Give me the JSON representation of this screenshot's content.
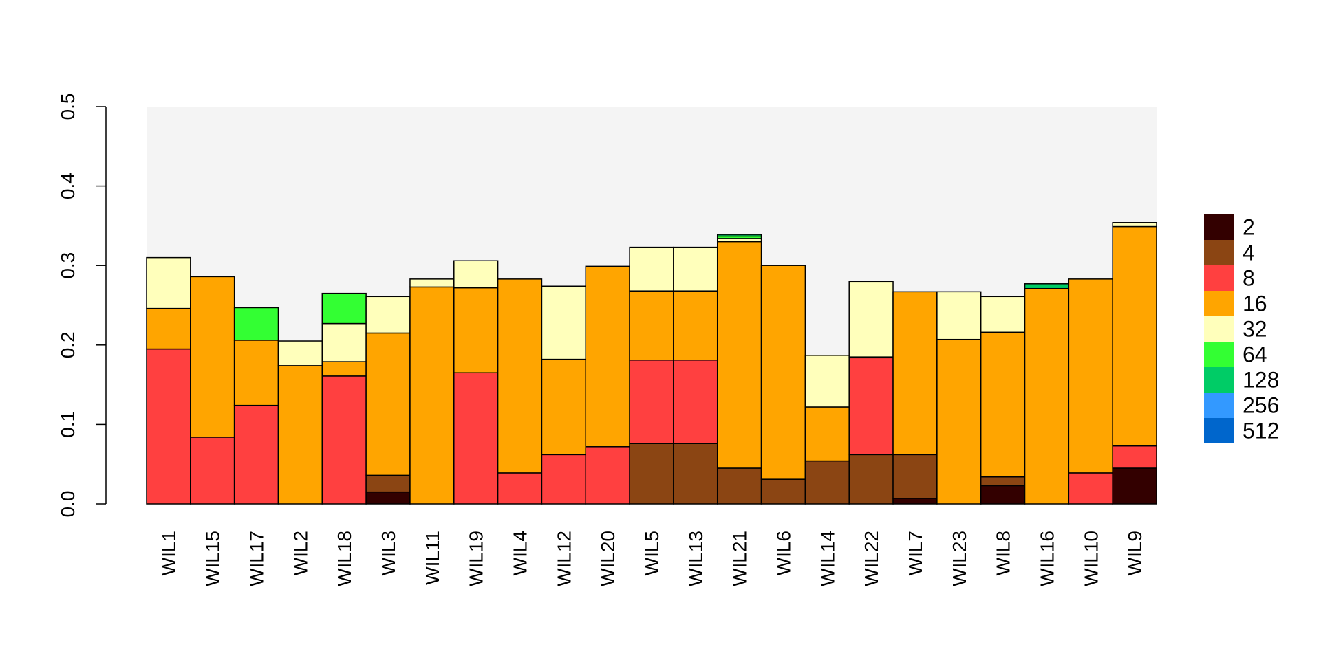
{
  "chart_data": {
    "type": "bar",
    "stacked": true,
    "title": "",
    "xlabel": "",
    "ylabel": "",
    "ylim": [
      0,
      0.5
    ],
    "yticks": [
      "0.0",
      "0.1",
      "0.2",
      "0.3",
      "0.4",
      "0.5"
    ],
    "plot_background": "#f4f4f4",
    "legend_position": "right",
    "categories": [
      "WIL1",
      "WIL15",
      "WIL17",
      "WIL2",
      "WIL18",
      "WIL3",
      "WIL11",
      "WIL19",
      "WIL4",
      "WIL12",
      "WIL20",
      "WIL5",
      "WIL13",
      "WIL21",
      "WIL6",
      "WIL14",
      "WIL22",
      "WIL7",
      "WIL23",
      "WIL8",
      "WIL16",
      "WIL10",
      "WIL9"
    ],
    "series": [
      {
        "name": "2",
        "color": "#330000",
        "values": [
          0,
          0,
          0,
          0,
          0,
          0.015,
          0,
          0,
          0,
          0,
          0,
          0,
          0,
          0,
          0,
          0,
          0,
          0.007,
          0,
          0.023,
          0,
          0,
          0.045
        ]
      },
      {
        "name": "4",
        "color": "#8b4513",
        "values": [
          0,
          0,
          0,
          0,
          0,
          0.021,
          0,
          0,
          0,
          0,
          0,
          0.076,
          0.076,
          0.045,
          0.031,
          0.054,
          0.062,
          0.055,
          0,
          0.011,
          0,
          0,
          0
        ]
      },
      {
        "name": "8",
        "color": "#ff4040",
        "values": [
          0.195,
          0.084,
          0.124,
          0,
          0.161,
          0,
          0,
          0.165,
          0.039,
          0.062,
          0.072,
          0.105,
          0.105,
          0,
          0,
          0,
          0.122,
          0,
          0,
          0,
          0,
          0.039,
          0.028
        ]
      },
      {
        "name": "16",
        "color": "#ffa500",
        "values": [
          0.051,
          0.202,
          0.082,
          0.174,
          0.018,
          0.179,
          0.273,
          0.107,
          0.244,
          0.12,
          0.227,
          0.087,
          0.087,
          0.285,
          0.269,
          0.068,
          0.001,
          0.205,
          0.207,
          0.182,
          0.271,
          0.244,
          0.276
        ]
      },
      {
        "name": "32",
        "color": "#ffffbb",
        "values": [
          0.064,
          0,
          0,
          0.031,
          0.048,
          0.046,
          0.01,
          0.034,
          0,
          0.092,
          0,
          0.055,
          0.055,
          0.004,
          0,
          0.065,
          0.095,
          0,
          0.06,
          0.045,
          0,
          0,
          0.005
        ]
      },
      {
        "name": "64",
        "color": "#33ff33",
        "values": [
          0,
          0,
          0.041,
          0,
          0.038,
          0,
          0,
          0,
          0,
          0,
          0,
          0,
          0,
          0.003,
          0,
          0,
          0,
          0,
          0,
          0,
          0,
          0,
          0
        ]
      },
      {
        "name": "128",
        "color": "#00cc66",
        "values": [
          0,
          0,
          0,
          0,
          0,
          0,
          0,
          0,
          0,
          0,
          0,
          0,
          0,
          0.002,
          0,
          0,
          0,
          0,
          0,
          0,
          0.006,
          0,
          0
        ]
      },
      {
        "name": "256",
        "color": "#3399ff",
        "values": [
          0,
          0,
          0,
          0,
          0,
          0,
          0,
          0,
          0,
          0,
          0,
          0,
          0,
          0,
          0,
          0,
          0,
          0,
          0,
          0,
          0,
          0,
          0
        ]
      },
      {
        "name": "512",
        "color": "#0066cc",
        "values": [
          0,
          0,
          0,
          0,
          0,
          0,
          0,
          0,
          0,
          0,
          0,
          0,
          0,
          0,
          0,
          0,
          0,
          0,
          0,
          0,
          0,
          0,
          0
        ]
      }
    ]
  }
}
